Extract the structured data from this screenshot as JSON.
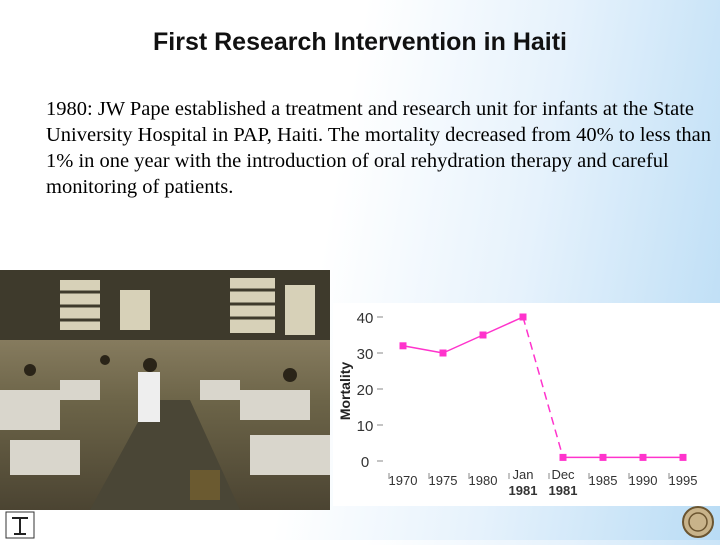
{
  "slide": {
    "title": "First Research Intervention in Haiti",
    "body": "1980: JW  Pape established a treatment and research unit for infants at the State University Hospital in PAP, Haiti.  The mortality decreased from 40% to less than 1% in one year with the introduction of oral rehydration therapy and careful monitoring of patients."
  },
  "colors": {
    "series": "#ff33cc",
    "axis_text": "#333333"
  },
  "chart_data": {
    "type": "line",
    "title": "",
    "xlabel": "",
    "ylabel": "Mortality",
    "ylim": [
      0,
      40
    ],
    "yticks": [
      "0",
      "10",
      "20",
      "30",
      "40"
    ],
    "categories": [
      "1970",
      "1975",
      "1980",
      "Jan 1981",
      "Dec 1981",
      "1985",
      "1990",
      "1995"
    ],
    "xtick_lines": [
      [
        "1970"
      ],
      [
        "1975"
      ],
      [
        "1980"
      ],
      [
        "Jan",
        "1981"
      ],
      [
        "Dec",
        "1981"
      ],
      [
        "1985"
      ],
      [
        "1990"
      ],
      [
        "1995"
      ]
    ],
    "series": [
      {
        "values": [
          32,
          30,
          35,
          40,
          1,
          1,
          1,
          1
        ],
        "style": [
          "solid",
          "solid",
          "solid",
          "dashed",
          "solid",
          "solid",
          "solid"
        ]
      }
    ],
    "grid": false,
    "legend": "none"
  }
}
